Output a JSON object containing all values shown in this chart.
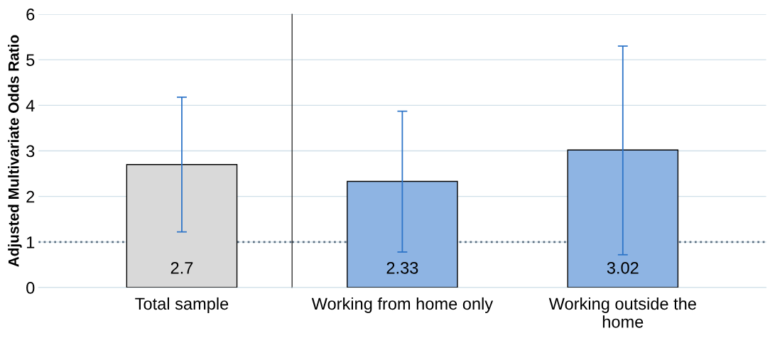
{
  "chart_data": [
    {
      "type": "bar",
      "ylabel": "Adjusted Multivariate Odds Ratio",
      "categories": [
        "Total sample"
      ],
      "values": [
        2.7
      ],
      "colors": [
        "#d9d9d9"
      ],
      "errors": [
        [
          1.22,
          4.18
        ]
      ],
      "data_labels": true,
      "ylim": [
        0,
        6
      ],
      "yticks": [
        0,
        1,
        2,
        3,
        4,
        5,
        6
      ],
      "grid": "y",
      "ref_lines": [
        {
          "axis": "y",
          "value": 1,
          "color": "#5f7385",
          "line_style": "dotted"
        }
      ]
    },
    {
      "type": "bar",
      "categories": [
        "Working from home only",
        "Working outside the\nhome"
      ],
      "values": [
        2.33,
        3.02
      ],
      "colors": [
        "#8eb4e3",
        "#8eb4e3"
      ],
      "errors": [
        [
          0.78,
          3.87
        ],
        [
          0.72,
          5.3
        ]
      ],
      "data_labels": true,
      "ylim": [
        0,
        6
      ],
      "tick_labels": "x",
      "grid": "y",
      "ref_lines": [
        {
          "axis": "y",
          "value": 1,
          "color": "#5f7385",
          "line_style": "dotted"
        }
      ]
    }
  ]
}
